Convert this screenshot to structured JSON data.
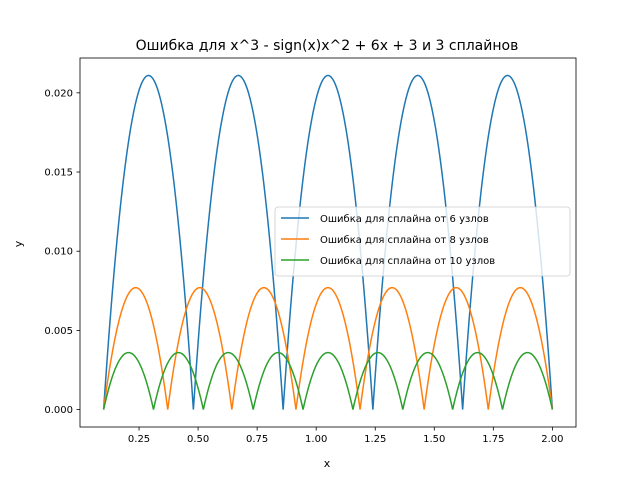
{
  "chart_data": {
    "type": "line",
    "title": "Ошибка для x^3 - sign(x)x^2 + 6x + 3 и 3 сплайнов",
    "xlabel": "x",
    "ylabel": "y",
    "xlim": [
      0.0,
      2.1
    ],
    "ylim": [
      -0.0011,
      0.0222
    ],
    "xticks": [
      0.25,
      0.5,
      0.75,
      1.0,
      1.25,
      1.5,
      1.75,
      2.0
    ],
    "xtick_labels": [
      "0.25",
      "0.50",
      "0.75",
      "1.00",
      "1.25",
      "1.50",
      "1.75",
      "2.00"
    ],
    "yticks": [
      0.0,
      0.005,
      0.01,
      0.015,
      0.02
    ],
    "ytick_labels": [
      "0.000",
      "0.005",
      "0.010",
      "0.015",
      "0.020"
    ],
    "grid": false,
    "legend_position": "center-right",
    "series": [
      {
        "name": "Ошибка для сплайна от 6 узлов",
        "color": "#1f77b4",
        "knots": [
          0.1,
          0.48,
          0.86,
          1.24,
          1.62,
          2.0
        ],
        "peak": 0.0211
      },
      {
        "name": "Ошибка для сплайна от 8 узлов",
        "color": "#ff7f0e",
        "knots": [
          0.1,
          0.3714,
          0.6429,
          0.9143,
          1.1857,
          1.4571,
          1.7286,
          2.0
        ],
        "peak": 0.0077
      },
      {
        "name": "Ошибка для сплайна от 10 узлов",
        "color": "#2ca02c",
        "knots": [
          0.1,
          0.3111,
          0.5222,
          0.7333,
          0.9444,
          1.1556,
          1.3667,
          1.5778,
          1.7889,
          2.0
        ],
        "peak": 0.0036
      }
    ]
  }
}
